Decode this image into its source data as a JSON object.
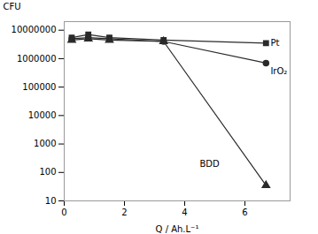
{
  "chart_data": {
    "type": "line",
    "x": [
      0.25,
      0.8,
      1.5,
      3.3,
      6.7
    ],
    "series": [
      {
        "name": "Pt",
        "color": "#2a2a2a",
        "marker": "square",
        "values": [
          5500000,
          7000000,
          5500000,
          4500000,
          3500000
        ]
      },
      {
        "name": "IrO₂",
        "color": "#2a2a2a",
        "marker": "circle",
        "values": [
          5000000,
          5500000,
          5000000,
          4000000,
          700000
        ]
      },
      {
        "name": "BDD",
        "color": "#2a2a2a",
        "marker": "triangle",
        "values": [
          4500000,
          5000000,
          4500000,
          4000000,
          35
        ]
      }
    ],
    "xlabel": "Q / Ah.L⁻¹",
    "ylabel": "CFU",
    "xlim": [
      0,
      7.5
    ],
    "xticks": [
      0,
      2,
      4,
      6
    ],
    "ylim": [
      10,
      20000000
    ],
    "yticks": [
      10,
      100,
      1000,
      10000,
      100000,
      1000000,
      10000000
    ],
    "log": "y",
    "annotations": [
      {
        "text": "Pt",
        "x": 6.85,
        "y": 3500000
      },
      {
        "text": "IrO₂",
        "x": 6.85,
        "y": 350000
      },
      {
        "text": "BDD",
        "x": 4.5,
        "y": 200
      }
    ]
  }
}
